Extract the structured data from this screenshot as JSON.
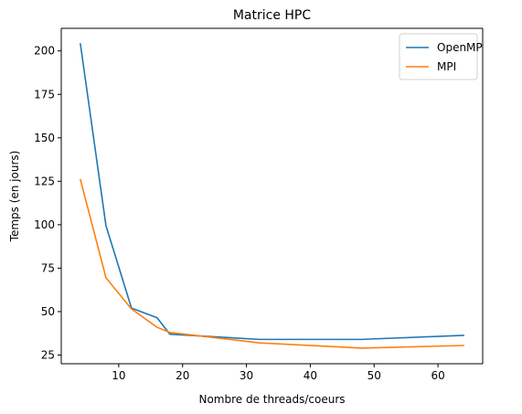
{
  "chart_data": {
    "type": "line",
    "title": "Matrice HPC",
    "xlabel": "Nombre de threads/coeurs",
    "ylabel": "Temps (en jours)",
    "xlim": [
      1,
      67
    ],
    "ylim": [
      20,
      213
    ],
    "xticks": [
      10,
      20,
      30,
      40,
      50,
      60
    ],
    "yticks": [
      25,
      50,
      75,
      100,
      125,
      150,
      175,
      200
    ],
    "grid": false,
    "legend_position": "top-right",
    "series": [
      {
        "name": "OpenMP",
        "color": "#1f77b4",
        "x": [
          4,
          8,
          12,
          16,
          18,
          32,
          48,
          64
        ],
        "y": [
          204,
          99.5,
          52,
          46.5,
          37,
          34,
          34,
          36.3
        ]
      },
      {
        "name": "MPI",
        "color": "#ff7f0e",
        "x": [
          4,
          8,
          12,
          16,
          18,
          32,
          48,
          64
        ],
        "y": [
          126,
          69.5,
          51.5,
          41,
          38,
          32,
          29,
          30.5
        ]
      }
    ]
  }
}
